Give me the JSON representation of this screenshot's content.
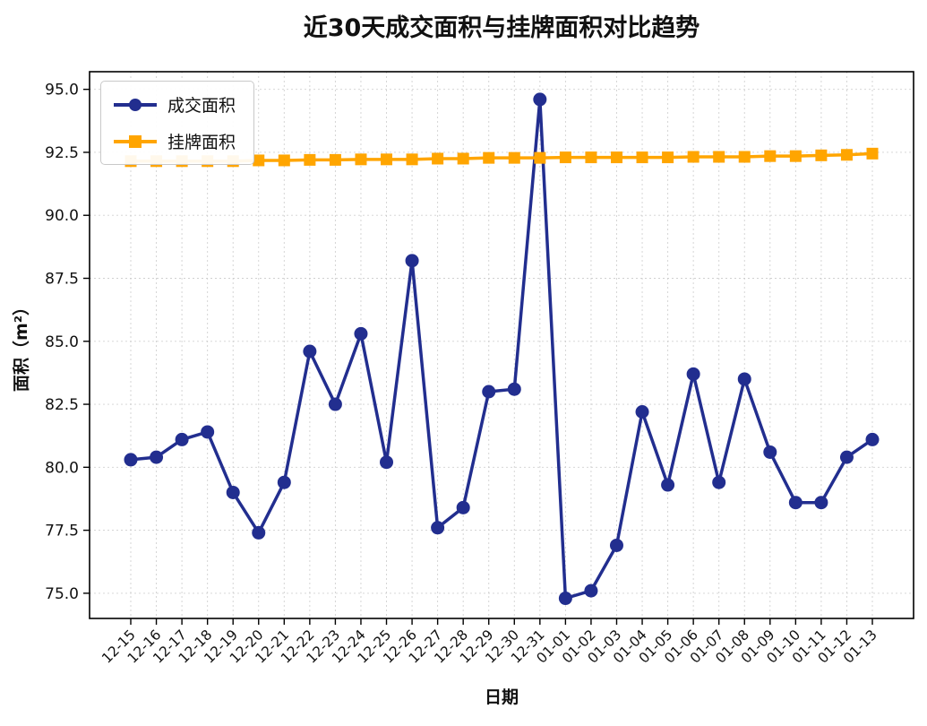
{
  "chart_data": {
    "type": "line",
    "title": "近30天成交面积与挂牌面积对比趋势",
    "xlabel": "日期",
    "ylabel": "面积（m²）",
    "categories": [
      "12-15",
      "12-16",
      "12-17",
      "12-18",
      "12-19",
      "12-20",
      "12-21",
      "12-22",
      "12-23",
      "12-24",
      "12-25",
      "12-26",
      "12-27",
      "12-28",
      "12-29",
      "12-30",
      "12-31",
      "01-01",
      "01-02",
      "01-03",
      "01-04",
      "01-05",
      "01-06",
      "01-07",
      "01-08",
      "01-09",
      "01-10",
      "01-11",
      "01-12",
      "01-13"
    ],
    "series": [
      {
        "name": "成交面积",
        "color": "#222e8f",
        "marker": "circle",
        "values": [
          80.3,
          80.4,
          81.1,
          81.4,
          79.0,
          77.4,
          79.4,
          84.6,
          82.5,
          85.3,
          80.2,
          88.2,
          77.6,
          78.4,
          83.0,
          83.1,
          94.6,
          74.8,
          75.1,
          76.9,
          82.2,
          79.3,
          83.7,
          79.4,
          83.5,
          80.6,
          78.6,
          78.6,
          80.4,
          81.1
        ]
      },
      {
        "name": "挂牌面积",
        "color": "#ffa500",
        "marker": "square",
        "values": [
          92.15,
          92.15,
          92.15,
          92.15,
          92.15,
          92.18,
          92.18,
          92.2,
          92.2,
          92.22,
          92.22,
          92.22,
          92.25,
          92.25,
          92.28,
          92.28,
          92.28,
          92.3,
          92.3,
          92.3,
          92.3,
          92.3,
          92.32,
          92.32,
          92.32,
          92.35,
          92.35,
          92.38,
          92.4,
          92.45
        ]
      }
    ],
    "ylim": [
      74.0,
      95.7
    ],
    "yticks": [
      75.0,
      77.5,
      80.0,
      82.5,
      85.0,
      87.5,
      90.0,
      92.5,
      95.0
    ],
    "grid": true,
    "legend_position": "upper-left"
  }
}
